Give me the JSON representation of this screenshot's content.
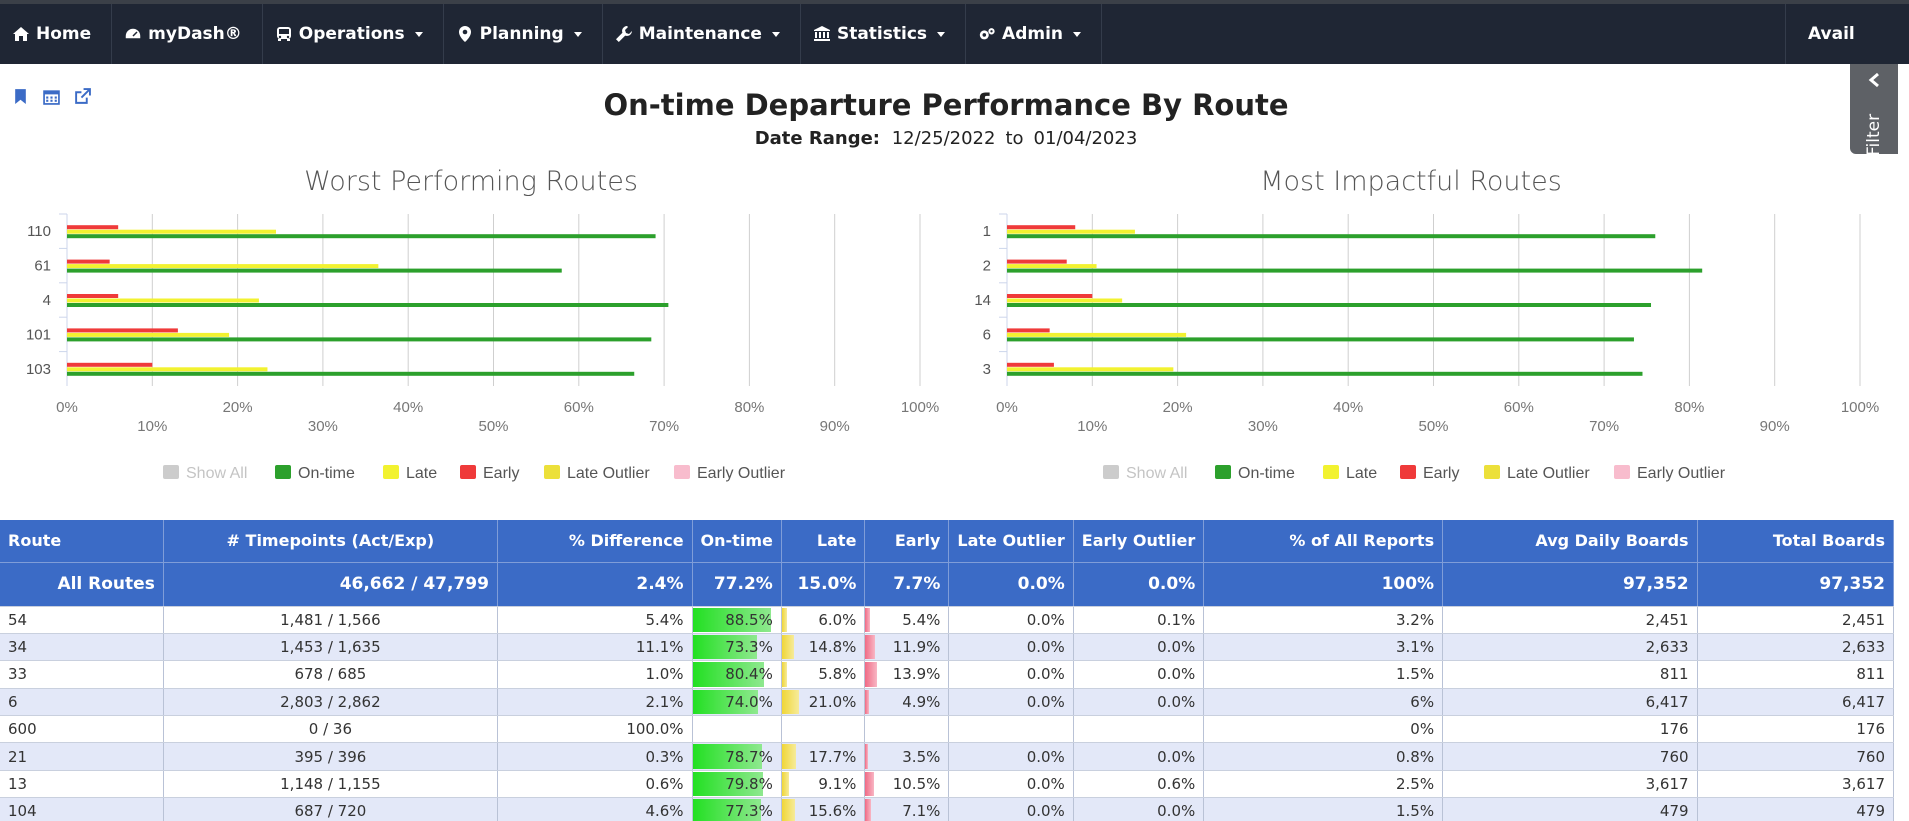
{
  "nav": {
    "items": [
      {
        "label": "Home",
        "icon": "home-icon",
        "dropdown": false
      },
      {
        "label": "myDash®",
        "icon": "dashboard-gauge-icon",
        "dropdown": false
      },
      {
        "label": "Operations",
        "icon": "bus-icon",
        "dropdown": true
      },
      {
        "label": "Planning",
        "icon": "map-marker-icon",
        "dropdown": true
      },
      {
        "label": "Maintenance",
        "icon": "wrench-icon",
        "dropdown": true
      },
      {
        "label": "Statistics",
        "icon": "bank-icon",
        "dropdown": true
      },
      {
        "label": "Admin",
        "icon": "gears-icon",
        "dropdown": true
      }
    ],
    "right_label": "Avail"
  },
  "page_icons": [
    "bookmark-icon",
    "calendar-icon",
    "external-link-icon"
  ],
  "filter_tab": {
    "label": "Filter"
  },
  "page": {
    "title": "On-time Departure Performance By Route",
    "date_range_label": "Date Range:",
    "start_date": "12/25/2022",
    "date_sep": "to",
    "end_date": "01/04/2023"
  },
  "colors": {
    "ontime": "#2ca02c",
    "late": "#f2f230",
    "early": "#ef3a3a",
    "late_outlier": "#ece03a",
    "early_outlier": "#f8bccd",
    "show_all": "#cccccc",
    "header_blue": "#3b6bc6"
  },
  "legend": [
    "Show All",
    "On-time",
    "Late",
    "Early",
    "Late Outlier",
    "Early Outlier"
  ],
  "chart_data": [
    {
      "type": "bar",
      "orientation": "horizontal",
      "title": "Worst Performing Routes",
      "categories": [
        "110",
        "61",
        "4",
        "101",
        "103"
      ],
      "xlim": [
        0,
        100
      ],
      "x_ticks": [
        "0%",
        "10%",
        "20%",
        "30%",
        "40%",
        "50%",
        "60%",
        "70%",
        "80%",
        "90%",
        "100%"
      ],
      "grid": true,
      "legend_position": "bottom",
      "series": [
        {
          "name": "Early",
          "values": [
            6,
            5,
            6,
            13,
            10
          ]
        },
        {
          "name": "Late",
          "values": [
            24.5,
            36.5,
            22.5,
            19,
            23.5
          ]
        },
        {
          "name": "On-time",
          "values": [
            69,
            58,
            70.5,
            68.5,
            66.5
          ]
        }
      ]
    },
    {
      "type": "bar",
      "orientation": "horizontal",
      "title": "Most Impactful Routes",
      "categories": [
        "1",
        "2",
        "14",
        "6",
        "3"
      ],
      "xlim": [
        0,
        100
      ],
      "x_ticks": [
        "0%",
        "10%",
        "20%",
        "30%",
        "40%",
        "50%",
        "60%",
        "70%",
        "80%",
        "90%",
        "100%"
      ],
      "grid": true,
      "legend_position": "bottom",
      "series": [
        {
          "name": "Early",
          "values": [
            8,
            7,
            10,
            5,
            5.5
          ]
        },
        {
          "name": "Late",
          "values": [
            15,
            10.5,
            13.5,
            21,
            19.5
          ]
        },
        {
          "name": "On-time",
          "values": [
            76,
            81.5,
            75.5,
            73.5,
            74.5
          ]
        }
      ]
    }
  ],
  "table": {
    "columns": [
      "Route",
      "# Timepoints (Act/Exp)",
      "% Difference",
      "On-time",
      "Late",
      "Early",
      "Late Outlier",
      "Early Outlier",
      "% of All Reports",
      "Avg Daily Boards",
      "Total Boards"
    ],
    "summary": [
      "All Routes",
      "46,662 / 47,799",
      "2.4%",
      "77.2%",
      "15.0%",
      "7.7%",
      "0.0%",
      "0.0%",
      "100%",
      "97,352",
      "97,352"
    ],
    "rows": [
      {
        "cells": [
          "54",
          "1,481 / 1,566",
          "5.4%",
          "88.5%",
          "6.0%",
          "5.4%",
          "0.0%",
          "0.1%",
          "3.2%",
          "2,451",
          "2,451"
        ],
        "ontime": 88.5,
        "late": 6.0,
        "early": 5.4
      },
      {
        "cells": [
          "34",
          "1,453 / 1,635",
          "11.1%",
          "73.3%",
          "14.8%",
          "11.9%",
          "0.0%",
          "0.0%",
          "3.1%",
          "2,633",
          "2,633"
        ],
        "ontime": 73.3,
        "late": 14.8,
        "early": 11.9
      },
      {
        "cells": [
          "33",
          "678 / 685",
          "1.0%",
          "80.4%",
          "5.8%",
          "13.9%",
          "0.0%",
          "0.0%",
          "1.5%",
          "811",
          "811"
        ],
        "ontime": 80.4,
        "late": 5.8,
        "early": 13.9
      },
      {
        "cells": [
          "6",
          "2,803 / 2,862",
          "2.1%",
          "74.0%",
          "21.0%",
          "4.9%",
          "0.0%",
          "0.0%",
          "6%",
          "6,417",
          "6,417"
        ],
        "ontime": 74.0,
        "late": 21.0,
        "early": 4.9
      },
      {
        "cells": [
          "600",
          "0 / 36",
          "100.0%",
          "",
          "",
          "",
          "",
          "",
          "0%",
          "176",
          "176"
        ],
        "ontime": 0,
        "late": 0,
        "early": 0
      },
      {
        "cells": [
          "21",
          "395 / 396",
          "0.3%",
          "78.7%",
          "17.7%",
          "3.5%",
          "0.0%",
          "0.0%",
          "0.8%",
          "760",
          "760"
        ],
        "ontime": 78.7,
        "late": 17.7,
        "early": 3.5
      },
      {
        "cells": [
          "13",
          "1,148 / 1,155",
          "0.6%",
          "79.8%",
          "9.1%",
          "10.5%",
          "0.0%",
          "0.6%",
          "2.5%",
          "3,617",
          "3,617"
        ],
        "ontime": 79.8,
        "late": 9.1,
        "early": 10.5
      },
      {
        "cells": [
          "104",
          "687 / 720",
          "4.6%",
          "77.3%",
          "15.6%",
          "7.1%",
          "0.0%",
          "0.0%",
          "1.5%",
          "479",
          "479"
        ],
        "ontime": 77.3,
        "late": 15.6,
        "early": 7.1
      }
    ]
  }
}
